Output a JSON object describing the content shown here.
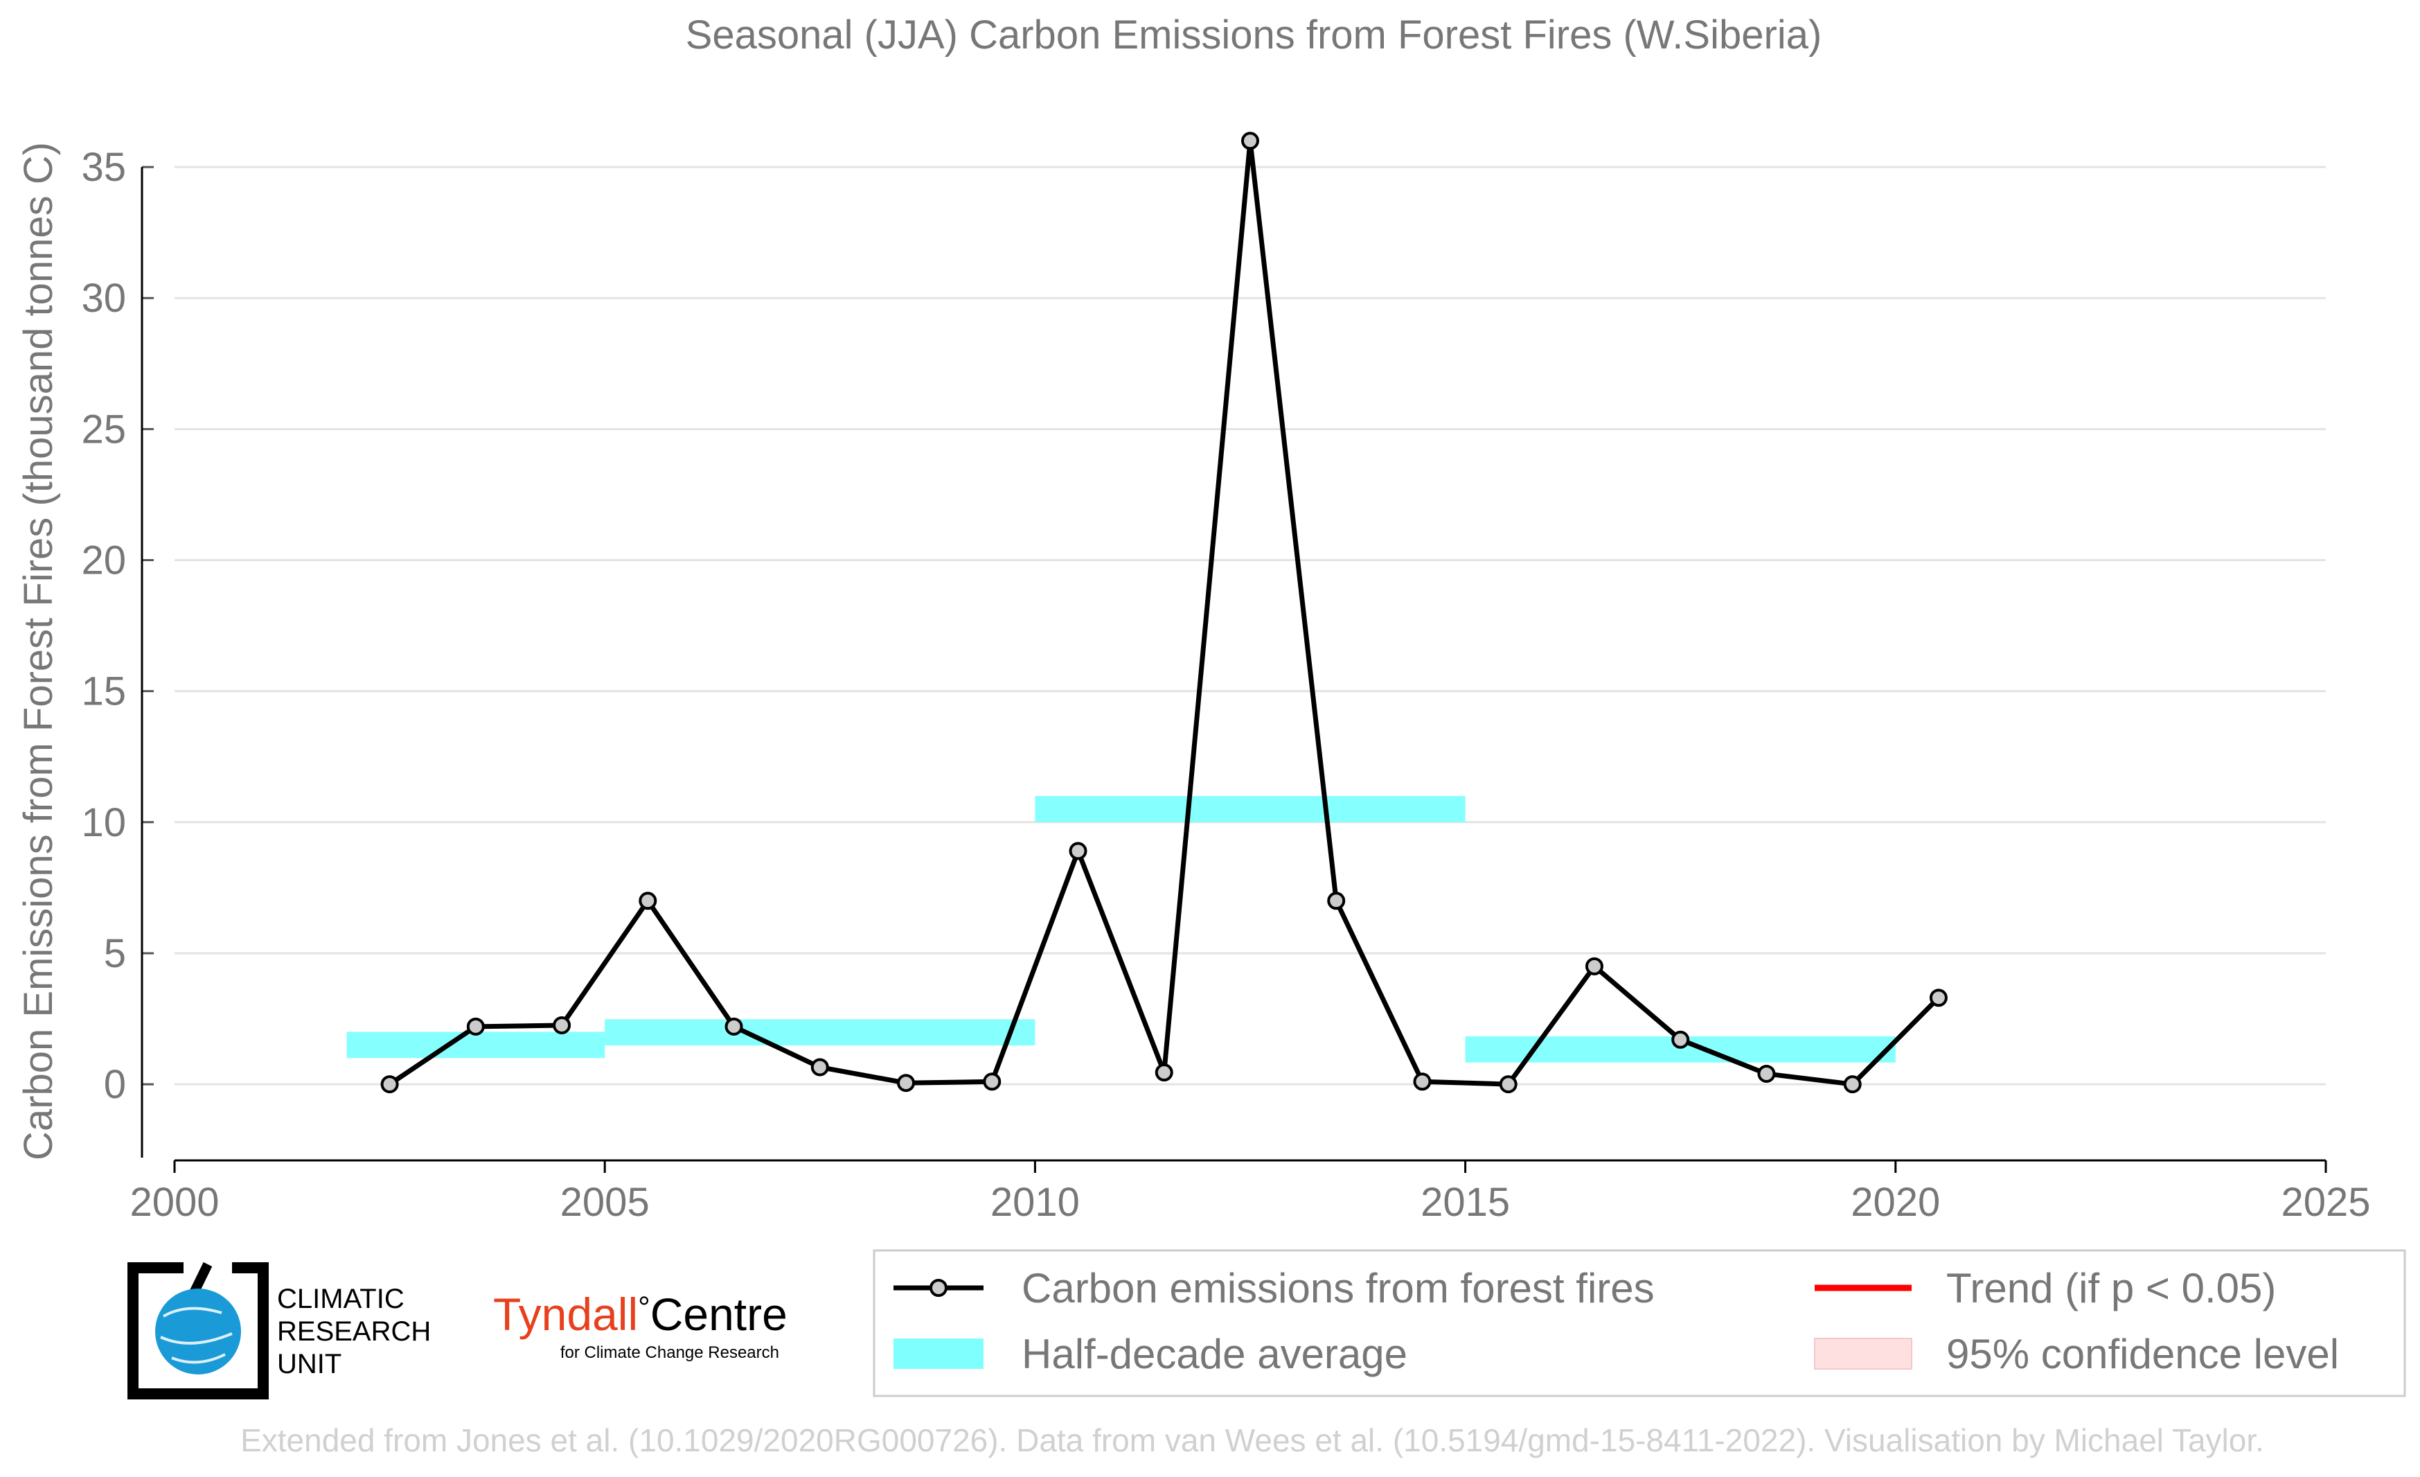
{
  "chart_data": {
    "type": "line",
    "title": "Seasonal (JJA) Carbon Emissions from Forest Fires (W.Siberia)",
    "xlabel": "",
    "ylabel": "Carbon Emissions from Forest Fires (thousand tonnes C)",
    "xlim": [
      2000,
      2025
    ],
    "ylim": [
      -2.8,
      36.8
    ],
    "x_ticks": [
      2000,
      2005,
      2010,
      2015,
      2020,
      2025
    ],
    "y_ticks": [
      0,
      5,
      10,
      15,
      20,
      25,
      30,
      35
    ],
    "grid": "horizontal",
    "legend_position": "bottom-right",
    "series": [
      {
        "name": "Carbon emissions from forest fires",
        "color": "#000000",
        "marker_fill": "#cccccc",
        "x": [
          2002.5,
          2003.5,
          2004.5,
          2005.5,
          2006.5,
          2007.5,
          2008.5,
          2009.5,
          2010.5,
          2011.5,
          2012.5,
          2013.5,
          2014.5,
          2015.5,
          2016.5,
          2017.5,
          2018.5,
          2019.5,
          2020.5
        ],
        "values": [
          0.0,
          2.2,
          2.25,
          7.0,
          2.2,
          0.65,
          0.05,
          0.1,
          8.9,
          0.45,
          36.0,
          7.0,
          0.1,
          0.0,
          4.5,
          1.7,
          0.4,
          0.0,
          3.3
        ]
      }
    ],
    "half_decade_average": {
      "name": "Half-decade average",
      "color": "#80ffff",
      "segments": [
        {
          "x0": 2002,
          "x1": 2005,
          "value": 1.5
        },
        {
          "x0": 2005,
          "x1": 2010,
          "value": 1.98
        },
        {
          "x0": 2010,
          "x1": 2015,
          "value": 10.5
        },
        {
          "x0": 2015,
          "x1": 2020,
          "value": 1.33
        }
      ]
    },
    "legend": [
      {
        "label": "Carbon emissions from forest fires",
        "kind": "line-marker",
        "color": "#000000"
      },
      {
        "label": "Trend (if p < 0.05)",
        "kind": "line",
        "color": "#ff0000"
      },
      {
        "label": "Half-decade average",
        "kind": "patch",
        "color": "#80ffff"
      },
      {
        "label": "95% confidence level",
        "kind": "patch",
        "color": "#ffe0e0"
      }
    ]
  },
  "logos": {
    "cru": {
      "line1": "CLIMATIC",
      "line2": "RESEARCH",
      "line3": "UNIT",
      "color": "#1a9ad6"
    },
    "tyndall": {
      "name": "Tyndall",
      "degree": "°",
      "centre": "Centre",
      "subtitle": "for Climate Change Research",
      "accent": "#e8401c"
    }
  },
  "credit": "Extended from Jones et al. (10.1029/2020RG000726). Data from van Wees et al. (10.5194/gmd-15-8411-2022). Visualisation by Michael Taylor."
}
